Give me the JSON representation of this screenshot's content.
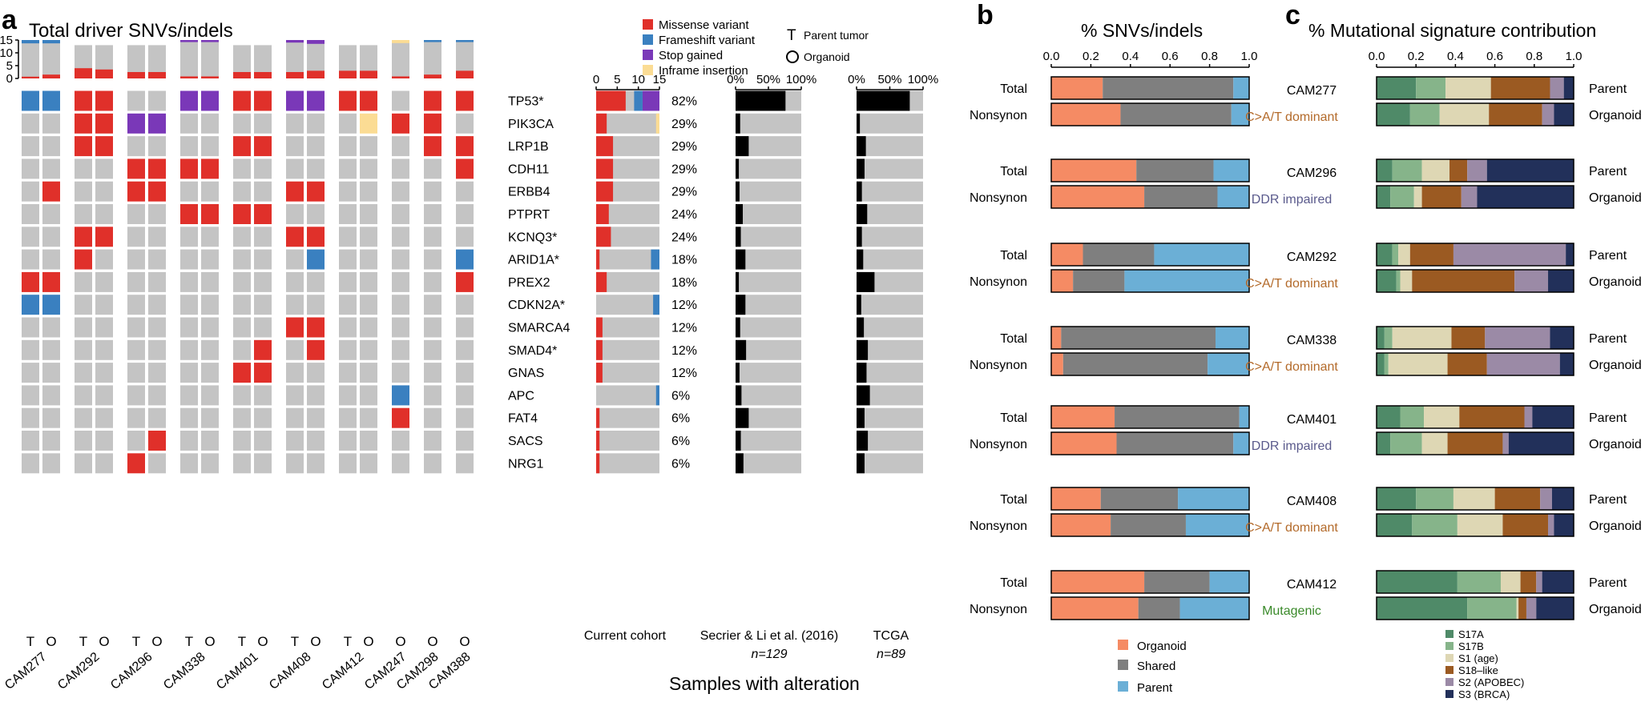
{
  "panel_labels": {
    "a": "a",
    "b": "b",
    "c": "c"
  },
  "colors": {
    "missense": "#e0302a",
    "frameshift": "#3a80c0",
    "stop": "#7a38b8",
    "inframe": "#fbdc94",
    "none": "#c4c4c4",
    "black": "#000000",
    "organoid": "#f58b64",
    "shared": "#7f7f7f",
    "parent": "#6bafd6",
    "S17A": "#4f8a68",
    "S17B": "#86b48a",
    "S1": "#ded7b4",
    "S18": "#9b5a22",
    "S2": "#9b8aa6",
    "S3": "#22305a",
    "cat_dominant": "#b36a2a",
    "cat_ddr": "#5a5a8c",
    "cat_mutagenic": "#3a8a2a"
  },
  "chart_data": [
    {
      "type": "heatmap",
      "title": "Total driver SNVs/indels",
      "legend": {
        "mutation_types": [
          "Missense variant",
          "Frameshift variant",
          "Stop gained",
          "Inframe insertion"
        ],
        "sample_types": [
          {
            "symbol": "T",
            "label": "Parent tumor"
          },
          {
            "symbol": "O",
            "label": "Organoid"
          }
        ]
      },
      "top_bar_axis": {
        "ylim": [
          0,
          15
        ],
        "ticks": [
          "15",
          "10",
          "5",
          "0"
        ]
      },
      "samples": [
        {
          "name": "CAM277",
          "cols": [
            {
              "type": "T",
              "total": 15,
              "missense": 0.7,
              "frameshift": 1.3,
              "stop": 0,
              "inframe": 0
            },
            {
              "type": "O",
              "total": 15,
              "missense": 1.5,
              "frameshift": 1.3,
              "stop": 0,
              "inframe": 0
            }
          ]
        },
        {
          "name": "CAM292",
          "cols": [
            {
              "type": "T",
              "total": 13,
              "missense": 4,
              "frameshift": 0,
              "stop": 0,
              "inframe": 0
            },
            {
              "type": "O",
              "total": 13,
              "missense": 3.5,
              "frameshift": 0,
              "stop": 0,
              "inframe": 0
            }
          ]
        },
        {
          "name": "CAM296",
          "cols": [
            {
              "type": "T",
              "total": 13,
              "missense": 2.5,
              "frameshift": 0,
              "stop": 0,
              "inframe": 0
            },
            {
              "type": "O",
              "total": 13,
              "missense": 2.5,
              "frameshift": 0,
              "stop": 0,
              "inframe": 0
            }
          ]
        },
        {
          "name": "CAM338",
          "cols": [
            {
              "type": "T",
              "total": 15,
              "missense": 0.8,
              "frameshift": 0,
              "stop": 0.8,
              "inframe": 0
            },
            {
              "type": "O",
              "total": 15,
              "missense": 0.8,
              "frameshift": 0,
              "stop": 0.8,
              "inframe": 0
            }
          ]
        },
        {
          "name": "CAM401",
          "cols": [
            {
              "type": "T",
              "total": 13,
              "missense": 2.5,
              "frameshift": 0,
              "stop": 0,
              "inframe": 0
            },
            {
              "type": "O",
              "total": 13,
              "missense": 2.5,
              "frameshift": 0,
              "stop": 0,
              "inframe": 0
            }
          ]
        },
        {
          "name": "CAM408",
          "cols": [
            {
              "type": "T",
              "total": 15,
              "missense": 2.5,
              "frameshift": 0,
              "stop": 1,
              "inframe": 0
            },
            {
              "type": "O",
              "total": 15,
              "missense": 3,
              "frameshift": 0,
              "stop": 1.5,
              "inframe": 0
            }
          ]
        },
        {
          "name": "CAM412",
          "cols": [
            {
              "type": "T",
              "total": 13,
              "missense": 3,
              "frameshift": 0,
              "stop": 0,
              "inframe": 0
            },
            {
              "type": "O",
              "total": 13,
              "missense": 3,
              "frameshift": 0,
              "stop": 0,
              "inframe": 0
            }
          ]
        },
        {
          "name": "CAM247",
          "cols": [
            {
              "type": "O",
              "total": 15,
              "missense": 0.8,
              "frameshift": 0,
              "stop": 0,
              "inframe": 1.2
            }
          ]
        },
        {
          "name": "CAM298",
          "cols": [
            {
              "type": "O",
              "total": 15,
              "missense": 1.5,
              "frameshift": 0.8,
              "stop": 0,
              "inframe": 0
            }
          ]
        },
        {
          "name": "CAM388",
          "cols": [
            {
              "type": "O",
              "total": 15,
              "missense": 3,
              "frameshift": 0.8,
              "stop": 0,
              "inframe": 0
            }
          ]
        }
      ],
      "genes": [
        "TP53*",
        "PIK3CA",
        "LRP1B",
        "CDH11",
        "ERBB4",
        "PTPRT",
        "KCNQ3*",
        "ARID1A*",
        "PREX2",
        "CDKN2A*",
        "SMARCA4",
        "SMAD4*",
        "GNAS",
        "APC",
        "FAT4",
        "SACS",
        "NRG1"
      ],
      "matrix_codes": "M missense, F frameshift, S stop gained, I inframe insertion, . none",
      "matrix": [
        "FFMM..SSMMSSMM.MM",
        "..MMSS.......IMM.",
        "..MM....MM.....MM",
        "....MMMM........M",
        ".M..MM....MM.....",
        "......MMMM.......",
        "..MM......MM.....",
        "..M........F....F",
        "MM..............M",
        "FF...............",
        "..........MM.....",
        ".........M.M.....",
        "........MM.......",
        "..............F..",
        "..............M..",
        ".....M...........",
        "....M............"
      ],
      "cohort": {
        "label": "Current cohort",
        "axis_ticks": [
          "0",
          "5",
          "10",
          "15"
        ],
        "axis_max": 15,
        "bars": [
          {
            "missense": 7,
            "frameshift": 2,
            "stop": 4,
            "inframe": 0,
            "total": 15
          },
          {
            "missense": 2.5,
            "frameshift": 0,
            "stop": 0,
            "inframe": 0.8,
            "total": 15
          },
          {
            "missense": 4,
            "frameshift": 0,
            "stop": 0,
            "inframe": 0,
            "total": 15
          },
          {
            "missense": 4,
            "frameshift": 0,
            "stop": 0,
            "inframe": 0,
            "total": 15
          },
          {
            "missense": 4,
            "frameshift": 0,
            "stop": 0,
            "inframe": 0,
            "total": 15
          },
          {
            "missense": 3,
            "frameshift": 0,
            "stop": 0,
            "inframe": 0,
            "total": 15
          },
          {
            "missense": 3.5,
            "frameshift": 0,
            "stop": 0,
            "inframe": 0,
            "total": 15
          },
          {
            "missense": 0.8,
            "frameshift": 2,
            "stop": 0,
            "inframe": 0,
            "total": 15
          },
          {
            "missense": 2.5,
            "frameshift": 0,
            "stop": 0,
            "inframe": 0,
            "total": 15
          },
          {
            "missense": 0,
            "frameshift": 1.5,
            "stop": 0,
            "inframe": 0,
            "total": 15
          },
          {
            "missense": 1.5,
            "frameshift": 0,
            "stop": 0,
            "inframe": 0,
            "total": 15
          },
          {
            "missense": 1.5,
            "frameshift": 0,
            "stop": 0,
            "inframe": 0,
            "total": 15
          },
          {
            "missense": 1.5,
            "frameshift": 0,
            "stop": 0,
            "inframe": 0,
            "total": 15
          },
          {
            "missense": 0,
            "frameshift": 0.8,
            "stop": 0,
            "inframe": 0,
            "total": 15
          },
          {
            "missense": 0.8,
            "frameshift": 0,
            "stop": 0,
            "inframe": 0,
            "total": 15
          },
          {
            "missense": 0.8,
            "frameshift": 0,
            "stop": 0,
            "inframe": 0,
            "total": 15
          },
          {
            "missense": 0.8,
            "frameshift": 0,
            "stop": 0,
            "inframe": 0,
            "total": 15
          }
        ],
        "percentages": [
          "82%",
          "29%",
          "29%",
          "29%",
          "29%",
          "24%",
          "24%",
          "18%",
          "18%",
          "12%",
          "12%",
          "12%",
          "12%",
          "6%",
          "6%",
          "6%",
          "6%"
        ]
      },
      "external": [
        {
          "label": "Secrier & Li et al. (2016)",
          "n_label": "n=129",
          "axis_ticks": [
            "0%",
            "50%",
            "100%"
          ],
          "values": [
            0.76,
            0.07,
            0.2,
            0.05,
            0.06,
            0.11,
            0.08,
            0.15,
            0.05,
            0.15,
            0.07,
            0.16,
            0.06,
            0.09,
            0.2,
            0.08,
            0.12
          ]
        },
        {
          "label": "TCGA",
          "n_label": "n=89",
          "axis_ticks": [
            "0%",
            "50%",
            "100%"
          ],
          "values": [
            0.8,
            0.05,
            0.14,
            0.12,
            0.08,
            0.16,
            0.08,
            0.1,
            0.27,
            0.07,
            0.11,
            0.17,
            0.15,
            0.2,
            0.12,
            0.17,
            0.12
          ]
        }
      ],
      "bottom_title": "Samples with alteration"
    },
    {
      "type": "bar",
      "orientation": "horizontal-stacked",
      "title": "% SNVs/indels",
      "xlim": [
        0,
        1
      ],
      "ticks": [
        "0.0",
        "0.2",
        "0.4",
        "0.6",
        "0.8",
        "1.0"
      ],
      "row_labels": [
        "Total",
        "Nonsynon"
      ],
      "series_names": [
        "Organoid",
        "Shared",
        "Parent"
      ],
      "groups": [
        {
          "sample": "CAM277",
          "rows": [
            [
              0.26,
              0.66,
              0.08
            ],
            [
              0.35,
              0.56,
              0.09
            ]
          ]
        },
        {
          "sample": "CAM296",
          "rows": [
            [
              0.43,
              0.39,
              0.18
            ],
            [
              0.47,
              0.37,
              0.16
            ]
          ]
        },
        {
          "sample": "CAM292",
          "rows": [
            [
              0.16,
              0.36,
              0.48
            ],
            [
              0.11,
              0.26,
              0.63
            ]
          ]
        },
        {
          "sample": "CAM338",
          "rows": [
            [
              0.05,
              0.78,
              0.17
            ],
            [
              0.06,
              0.73,
              0.21
            ]
          ]
        },
        {
          "sample": "CAM401",
          "rows": [
            [
              0.32,
              0.63,
              0.05
            ],
            [
              0.33,
              0.59,
              0.08
            ]
          ]
        },
        {
          "sample": "CAM408",
          "rows": [
            [
              0.25,
              0.39,
              0.36
            ],
            [
              0.3,
              0.38,
              0.32
            ]
          ]
        },
        {
          "sample": "CAM412",
          "rows": [
            [
              0.47,
              0.33,
              0.2
            ],
            [
              0.44,
              0.21,
              0.35
            ]
          ]
        }
      ]
    },
    {
      "type": "bar",
      "orientation": "horizontal-stacked",
      "title": "% Mutational signature contribution",
      "xlim": [
        0,
        1
      ],
      "ticks": [
        "0.0",
        "0.2",
        "0.4",
        "0.6",
        "0.8",
        "1.0"
      ],
      "row_labels": [
        "Parent",
        "Organoid"
      ],
      "series_names": [
        "S17A",
        "S17B",
        "S1 (age)",
        "S18–like",
        "S2 (APOBEC)",
        "S3 (BRCA)"
      ],
      "series_keys": [
        "S17A",
        "S17B",
        "S1",
        "S18",
        "S2",
        "S3"
      ],
      "groups": [
        {
          "sample": "CAM277",
          "category": "C>A/T dominant",
          "cat_color": "cat_dominant",
          "rows": [
            [
              0.2,
              0.15,
              0.23,
              0.3,
              0.07,
              0.05
            ],
            [
              0.17,
              0.15,
              0.25,
              0.27,
              0.06,
              0.1
            ]
          ]
        },
        {
          "sample": "CAM296",
          "category": "DDR impaired",
          "cat_color": "cat_ddr",
          "rows": [
            [
              0.08,
              0.15,
              0.14,
              0.09,
              0.1,
              0.44
            ],
            [
              0.07,
              0.12,
              0.04,
              0.2,
              0.08,
              0.49
            ]
          ]
        },
        {
          "sample": "CAM292",
          "category": "C>A/T dominant",
          "cat_color": "cat_dominant",
          "rows": [
            [
              0.08,
              0.03,
              0.06,
              0.22,
              0.57,
              0.04
            ],
            [
              0.1,
              0.02,
              0.06,
              0.52,
              0.17,
              0.13
            ]
          ]
        },
        {
          "sample": "CAM338",
          "category": "C>A/T dominant",
          "cat_color": "cat_dominant",
          "rows": [
            [
              0.04,
              0.04,
              0.3,
              0.17,
              0.33,
              0.12
            ],
            [
              0.04,
              0.02,
              0.3,
              0.2,
              0.37,
              0.07
            ]
          ]
        },
        {
          "sample": "CAM401",
          "category": "DDR impaired",
          "cat_color": "cat_ddr",
          "rows": [
            [
              0.12,
              0.12,
              0.18,
              0.33,
              0.04,
              0.21
            ],
            [
              0.07,
              0.16,
              0.13,
              0.28,
              0.03,
              0.33
            ]
          ]
        },
        {
          "sample": "CAM408",
          "category": "C>A/T dominant",
          "cat_color": "cat_dominant",
          "rows": [
            [
              0.2,
              0.19,
              0.21,
              0.23,
              0.06,
              0.11
            ],
            [
              0.18,
              0.23,
              0.23,
              0.23,
              0.03,
              0.1
            ]
          ]
        },
        {
          "sample": "CAM412",
          "category": "Mutagenic",
          "cat_color": "cat_mutagenic",
          "rows": [
            [
              0.41,
              0.22,
              0.1,
              0.08,
              0.03,
              0.16
            ],
            [
              0.46,
              0.25,
              0.01,
              0.04,
              0.05,
              0.19
            ]
          ]
        }
      ]
    }
  ]
}
